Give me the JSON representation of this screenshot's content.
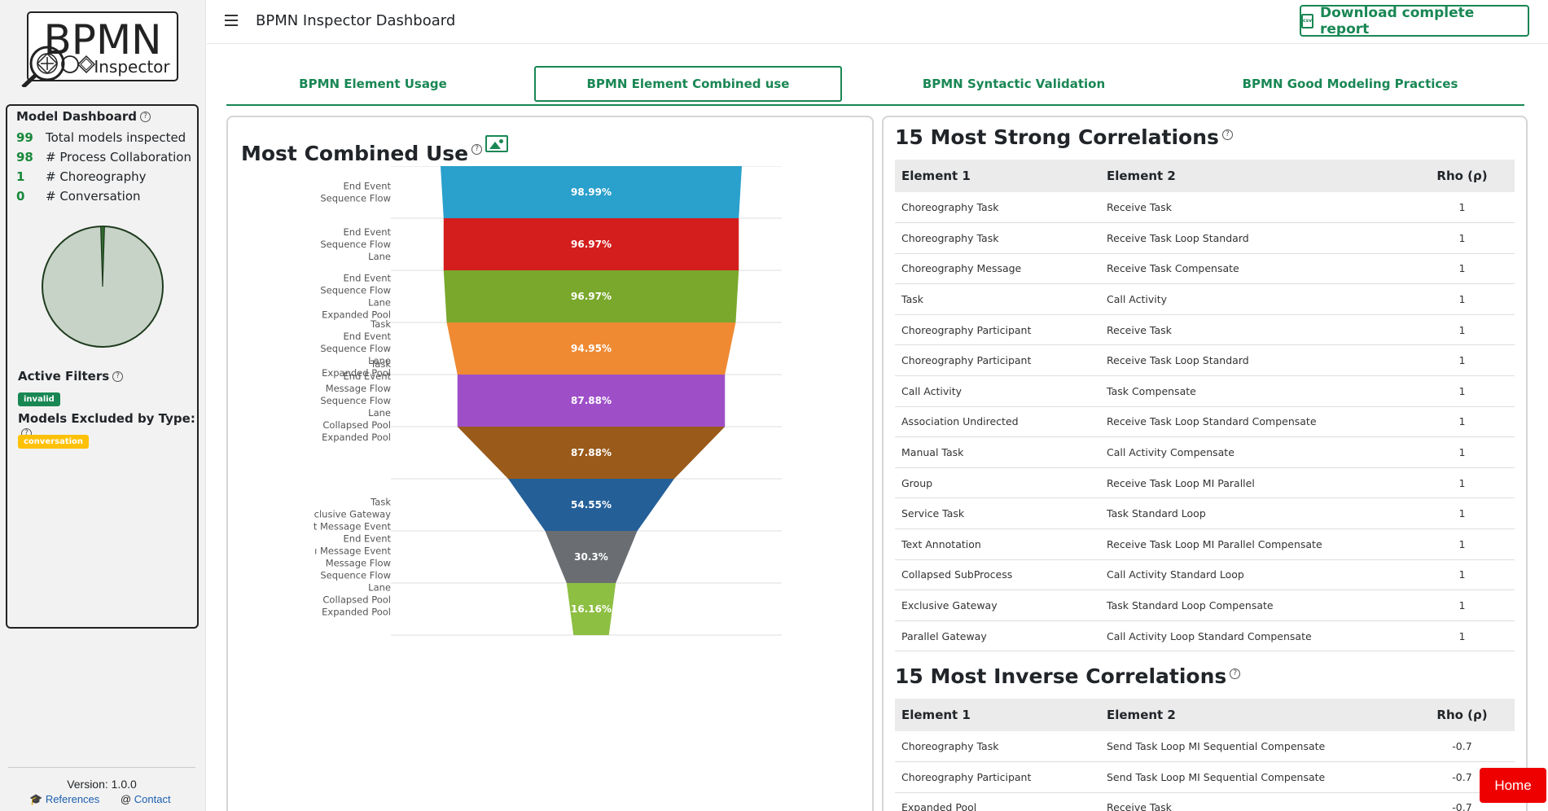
{
  "sidebar": {
    "logo": {
      "line1": "BPMN",
      "line2": "Inspector"
    },
    "dashboard": {
      "title": "Model Dashboard",
      "stats": [
        {
          "value": "99",
          "label": "Total models inspected"
        },
        {
          "value": "98",
          "label": "# Process Collaboration"
        },
        {
          "value": "1",
          "label": "# Choreography"
        },
        {
          "value": "0",
          "label": "# Conversation"
        }
      ],
      "pie": {
        "process_collaboration": 98,
        "choreography": 1,
        "conversation": 0,
        "colors": {
          "process": "#c8d3c8",
          "stroke": "#1e3b1e"
        }
      },
      "active_filters_title": "Active Filters",
      "active_filter_badge": "invalid",
      "excluded_title": "Models Excluded by Type:",
      "excluded_badge": "conversation"
    },
    "version": "Version: 1.0.0",
    "links": {
      "references": "References",
      "contact": "Contact"
    }
  },
  "header": {
    "title": "BPMN Inspector Dashboard",
    "download_label": "Download complete report",
    "csv_icon_text": "csv"
  },
  "tabs": [
    {
      "label": "BPMN Element Usage",
      "active": false
    },
    {
      "label": "BPMN Element Combined use",
      "active": true
    },
    {
      "label": "BPMN Syntactic Validation",
      "active": false
    },
    {
      "label": "BPMN Good Modeling Practices",
      "active": false
    }
  ],
  "left_card": {
    "title": "Most Combined Use"
  },
  "chart_data": {
    "type": "funnel",
    "stages": [
      {
        "value": 98.99,
        "label": "98.99%",
        "color": "#2aa0cc",
        "elements": [
          "End Event",
          "Sequence Flow"
        ]
      },
      {
        "value": 96.97,
        "label": "96.97%",
        "color": "#d41e1e",
        "elements": [
          "End Event",
          "Sequence Flow",
          "Lane"
        ]
      },
      {
        "value": 96.97,
        "label": "96.97%",
        "color": "#7aa82c",
        "elements": [
          "End Event",
          "Sequence Flow",
          "Lane",
          "Expanded Pool"
        ]
      },
      {
        "value": 94.95,
        "label": "94.95%",
        "color": "#ef8a33",
        "elements": [
          "Task",
          "End Event",
          "Sequence Flow",
          "Lane",
          "Expanded Pool"
        ]
      },
      {
        "value": 87.88,
        "label": "87.88%",
        "color": "#9e4fc8",
        "elements": [
          "Task",
          "End Event",
          "Message Flow",
          "Sequence Flow",
          "Lane",
          "Collapsed Pool",
          "Expanded Pool"
        ]
      },
      {
        "value": 87.88,
        "label": "87.88%",
        "color": "#9a5a1a",
        "elements": []
      },
      {
        "value": 54.55,
        "label": "54.55%",
        "color": "#245f98",
        "elements": []
      },
      {
        "value": 30.3,
        "label": "30.3%",
        "color": "#6a6e72",
        "elements": [
          "Task",
          "clusive Gateway",
          "t Message Event",
          "End Event",
          "ı Message Event",
          "Message Flow",
          "Sequence Flow",
          "Lane",
          "Collapsed Pool",
          "Expanded Pool"
        ]
      },
      {
        "value": 16.16,
        "label": "16.16%",
        "color": "#8dbf42",
        "elements": []
      }
    ]
  },
  "right_card": {
    "strong_title": "15 Most Strong Correlations",
    "inverse_title": "15 Most Inverse Correlations",
    "columns": [
      "Element 1",
      "Element 2",
      "Rho (ρ)"
    ],
    "strong": [
      [
        "Choreography Task",
        "Receive Task",
        "1"
      ],
      [
        "Choreography Task",
        "Receive Task Loop Standard",
        "1"
      ],
      [
        "Choreography Message",
        "Receive Task Compensate",
        "1"
      ],
      [
        "Task",
        "Call Activity",
        "1"
      ],
      [
        "Choreography Participant",
        "Receive Task",
        "1"
      ],
      [
        "Choreography Participant",
        "Receive Task Loop Standard",
        "1"
      ],
      [
        "Call Activity",
        "Task Compensate",
        "1"
      ],
      [
        "Association Undirected",
        "Receive Task Loop Standard Compensate",
        "1"
      ],
      [
        "Manual Task",
        "Call Activity Compensate",
        "1"
      ],
      [
        "Group",
        "Receive Task Loop MI Parallel",
        "1"
      ],
      [
        "Service Task",
        "Task Standard Loop",
        "1"
      ],
      [
        "Text Annotation",
        "Receive Task Loop MI Parallel Compensate",
        "1"
      ],
      [
        "Collapsed SubProcess",
        "Call Activity Standard Loop",
        "1"
      ],
      [
        "Exclusive Gateway",
        "Task Standard Loop Compensate",
        "1"
      ],
      [
        "Parallel Gateway",
        "Call Activity Loop Standard Compensate",
        "1"
      ]
    ],
    "inverse": [
      [
        "Choreography Task",
        "Send Task Loop MI Sequential Compensate",
        "-0.7"
      ],
      [
        "Choreography Participant",
        "Send Task Loop MI Sequential Compensate",
        "-0.7"
      ],
      [
        "Expanded Pool",
        "Receive Task",
        "-0.7"
      ]
    ]
  },
  "home_button": "Home"
}
